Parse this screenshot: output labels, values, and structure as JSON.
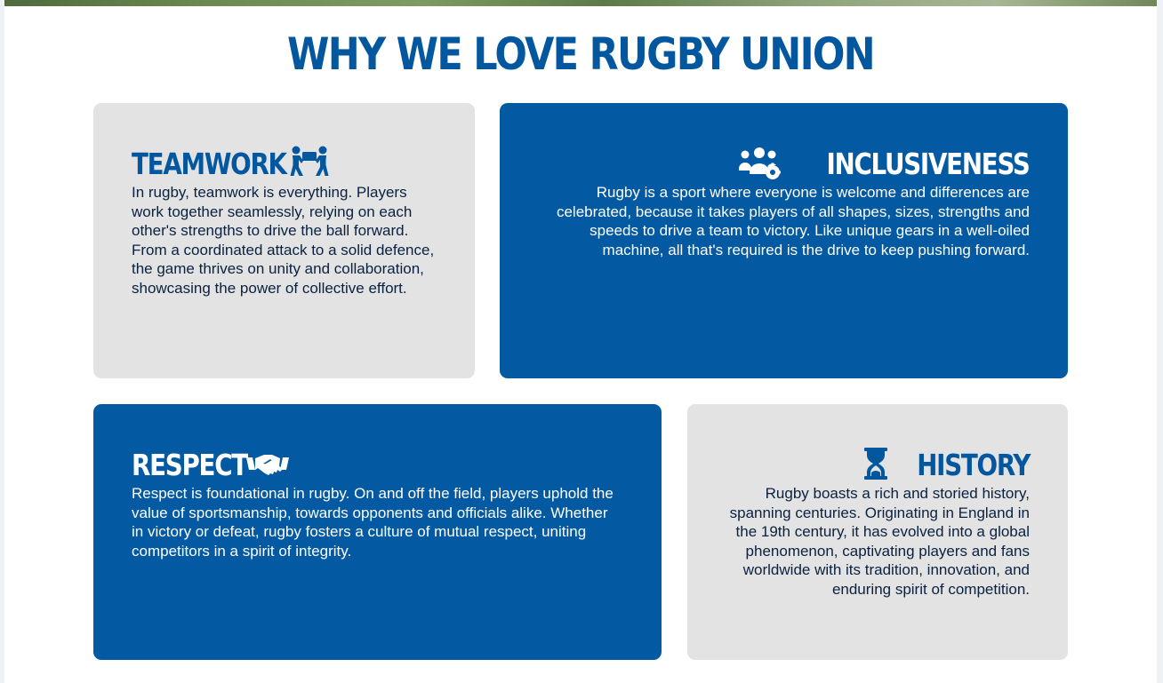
{
  "hero": {
    "strip_colors": [
      "#4f6b3c",
      "#7f9a63",
      "#a7b795"
    ]
  },
  "section": {
    "title": "WHY WE LOVE RUGBY UNION"
  },
  "colors": {
    "brand_blue": "#035aa2",
    "title_blue": "#03579f",
    "light_card": "#e3e3e4",
    "dark_text": "#0a2140",
    "page_bg": "#ffffff"
  },
  "cards": [
    {
      "heading": "TEAMWORK",
      "icon": "people-carry-icon",
      "theme": "light",
      "body": "In rugby, teamwork is everything. Players work together seamlessly, relying on each other's strengths to drive the ball forward. From a coordinated attack to a solid defence, the game thrives on unity and collaboration, showcasing the power of collective effort."
    },
    {
      "heading": "INCLUSIVENESS",
      "icon": "users-gear-icon",
      "theme": "dark",
      "body": "Rugby is a sport where everyone is welcome and differences are celebrated, because it takes players of all shapes, sizes, strengths and speeds to drive a team to victory. Like unique gears in a well-oiled machine, all that's required is the drive to keep pushing forward."
    },
    {
      "heading": "RESPECT",
      "icon": "handshake-icon",
      "theme": "dark",
      "body": "Respect is foundational in rugby. On and off the field, players uphold the value of sportsmanship, towards opponents and officials alike. Whether in victory or defeat, rugby fosters a culture of mutual respect, uniting competitors in a spirit of integrity."
    },
    {
      "heading": "HISTORY",
      "icon": "hourglass-icon",
      "theme": "light",
      "body": "Rugby boasts a rich and storied history, spanning centuries. Originating in England in the 19th century, it has evolved into a global phenomenon, captivating players and fans worldwide with its tradition, innovation, and enduring spirit of competition."
    }
  ]
}
